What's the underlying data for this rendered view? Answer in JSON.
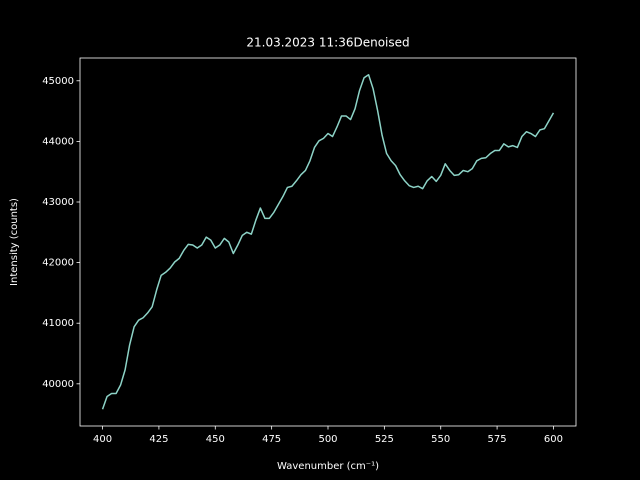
{
  "chart_data": {
    "type": "line",
    "title": "21.03.2023 11:36Denoised",
    "x_label": "Wavenumber (cm⁻¹)",
    "y_label": "Intensity (counts)",
    "x": [
      400,
      402,
      404,
      406,
      408,
      410,
      412,
      414,
      416,
      418,
      420,
      422,
      424,
      426,
      428,
      430,
      432,
      434,
      436,
      438,
      440,
      442,
      444,
      446,
      448,
      450,
      452,
      454,
      456,
      458,
      460,
      462,
      464,
      466,
      468,
      470,
      472,
      474,
      476,
      478,
      480,
      482,
      484,
      486,
      488,
      490,
      492,
      494,
      496,
      498,
      500,
      502,
      504,
      506,
      508,
      510,
      512,
      514,
      516,
      518,
      520,
      522,
      524,
      526,
      528,
      530,
      532,
      534,
      536,
      538,
      540,
      542,
      544,
      546,
      548,
      550,
      552,
      554,
      556,
      558,
      560,
      562,
      564,
      566,
      568,
      570,
      572,
      574,
      576,
      578,
      580,
      582,
      584,
      586,
      588,
      590,
      592,
      594,
      596,
      598,
      600
    ],
    "series": [
      {
        "color": "#8dd3c7",
        "values": [
          39580,
          39790,
          39840,
          39840,
          39980,
          40230,
          40640,
          40940,
          41050,
          41090,
          41170,
          41270,
          41550,
          41790,
          41840,
          41910,
          42010,
          42070,
          42200,
          42300,
          42290,
          42240,
          42290,
          42420,
          42370,
          42240,
          42290,
          42400,
          42340,
          42150,
          42290,
          42450,
          42500,
          42470,
          42700,
          42900,
          42730,
          42730,
          42830,
          42960,
          43090,
          43240,
          43260,
          43350,
          43450,
          43520,
          43680,
          43900,
          44010,
          44050,
          44130,
          44080,
          44240,
          44420,
          44420,
          44360,
          44540,
          44840,
          45050,
          45100,
          44870,
          44510,
          44100,
          43800,
          43680,
          43600,
          43450,
          43350,
          43270,
          43240,
          43260,
          43220,
          43350,
          43420,
          43340,
          43440,
          43630,
          43520,
          43440,
          43450,
          43520,
          43500,
          43550,
          43680,
          43720,
          43730,
          43800,
          43850,
          43850,
          43960,
          43910,
          43930,
          43900,
          44080,
          44160,
          44130,
          44080,
          44190,
          44210,
          44340,
          44470
        ]
      }
    ],
    "xlim": [
      390,
      610
    ],
    "ylim": [
      39304,
      45376
    ],
    "xticks": [
      400,
      425,
      450,
      475,
      500,
      525,
      550,
      575,
      600
    ],
    "yticks": [
      40000,
      41000,
      42000,
      43000,
      44000,
      45000
    ]
  }
}
